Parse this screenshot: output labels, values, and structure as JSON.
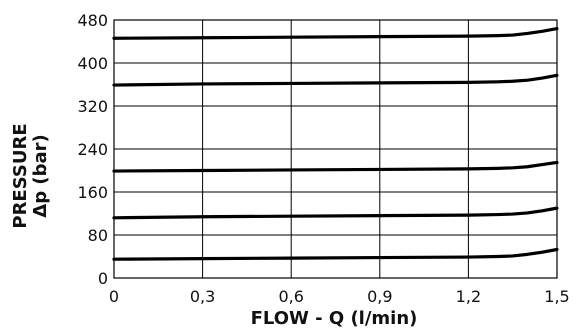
{
  "chart_data": {
    "type": "line",
    "xlabel": "FLOW - Q (l/min)",
    "ylabel_line1": "PRESSURE",
    "ylabel_line2": "Δp (bar)",
    "xlim": [
      0,
      1.5
    ],
    "ylim": [
      0,
      480
    ],
    "x_ticks": [
      0,
      0.3,
      0.6,
      0.9,
      1.2,
      1.5
    ],
    "x_tick_labels": [
      "0",
      "0,3",
      "0,6",
      "0,9",
      "1,2",
      "1,5"
    ],
    "y_ticks": [
      0,
      80,
      160,
      240,
      320,
      400,
      480
    ],
    "y_tick_labels": [
      "0",
      "80",
      "160",
      "240",
      "320",
      "400",
      "480"
    ],
    "grid": true,
    "line_color": "#000000",
    "grid_color": "#000000",
    "series": [
      {
        "x": [
          0,
          0.3,
          0.6,
          0.9,
          1.2,
          1.3,
          1.35,
          1.4,
          1.45,
          1.5
        ],
        "y": [
          35,
          36,
          37,
          38,
          39,
          40,
          41,
          44,
          48,
          53
        ]
      },
      {
        "x": [
          0,
          0.3,
          0.6,
          0.9,
          1.2,
          1.3,
          1.35,
          1.4,
          1.45,
          1.5
        ],
        "y": [
          112,
          114,
          115,
          116,
          117,
          118,
          119,
          121,
          125,
          130
        ]
      },
      {
        "x": [
          0,
          0.3,
          0.6,
          0.9,
          1.2,
          1.3,
          1.35,
          1.4,
          1.45,
          1.5
        ],
        "y": [
          199,
          200,
          201,
          202,
          203,
          204,
          205,
          207,
          211,
          215
        ]
      },
      {
        "x": [
          0,
          0.3,
          0.6,
          0.9,
          1.2,
          1.3,
          1.35,
          1.4,
          1.45,
          1.5
        ],
        "y": [
          359,
          361,
          362,
          363,
          364,
          365,
          366,
          368,
          372,
          377
        ]
      },
      {
        "x": [
          0,
          0.3,
          0.6,
          0.9,
          1.2,
          1.3,
          1.35,
          1.4,
          1.45,
          1.5
        ],
        "y": [
          446,
          447,
          448,
          449,
          450,
          451,
          452,
          455,
          459,
          464
        ]
      }
    ]
  }
}
